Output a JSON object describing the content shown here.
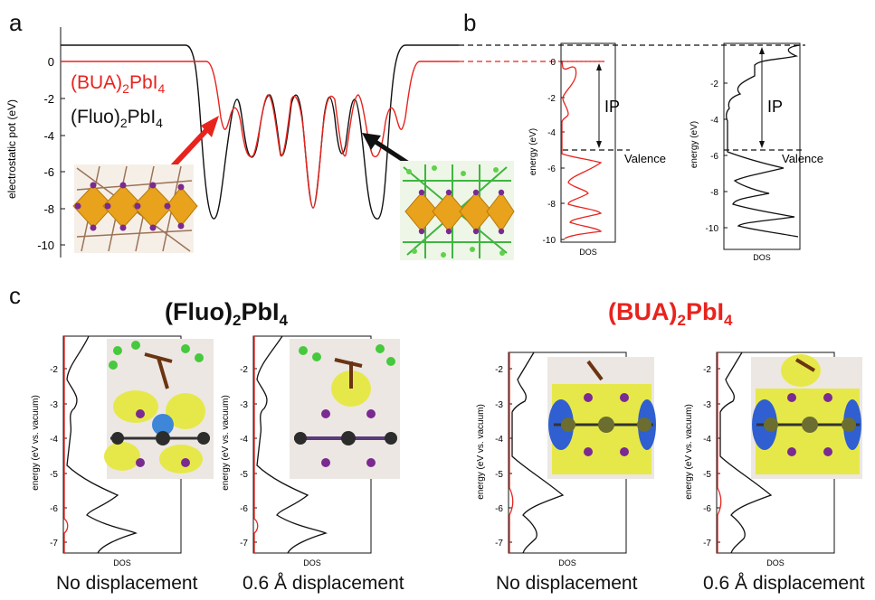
{
  "panel_labels": {
    "a": "a",
    "b": "b",
    "c": "c"
  },
  "panel_a": {
    "ylabel": "electrostatic pot (eV)",
    "yticks": [
      "0",
      "-2",
      "-4",
      "-6",
      "-8",
      "-10"
    ],
    "legend": [
      {
        "name": "(BUA)",
        "sub": "2",
        "rest": "PbI",
        "sub2": "4",
        "color": "#e8231d"
      },
      {
        "name": "(Fluo)",
        "sub": "2",
        "rest": "PbI",
        "sub2": "4",
        "color": "#111111"
      }
    ]
  },
  "panel_b": {
    "left": {
      "ylabel": "energy (eV)",
      "yticks": [
        "0",
        "-2",
        "-4",
        "-6",
        "-8",
        "-10"
      ],
      "xlabel": "DOS",
      "ip_label": "IP",
      "valence_label": "Valence"
    },
    "right": {
      "ylabel": "energy (eV)",
      "yticks": [
        "-2",
        "-4",
        "-6",
        "-8",
        "-10"
      ],
      "xlabel": "DOS",
      "ip_label": "IP",
      "valence_label": "Valence"
    }
  },
  "panel_c": {
    "titles": [
      {
        "pre": "(Fluo)",
        "sub": "2",
        "mid": "PbI",
        "sub2": "4",
        "color": "#111111"
      },
      {
        "pre": "(BUA)",
        "sub": "2",
        "mid": "PbI",
        "sub2": "4",
        "color": "#e8231d"
      }
    ],
    "ylabel": "energy (eV vs. vacuum)",
    "yticks": [
      "-2",
      "-3",
      "-4",
      "-5",
      "-6",
      "-7"
    ],
    "xlabel": "DOS",
    "captions": [
      "No displacement",
      "0.6 Å displacement",
      "No displacement",
      "0.6 Å displacement"
    ]
  },
  "colors": {
    "red": "#e8231d",
    "black": "#111111",
    "octahedron": "#e8a21c",
    "density": "#e6e84a",
    "blue_lobe": "#2f5fd0"
  }
}
